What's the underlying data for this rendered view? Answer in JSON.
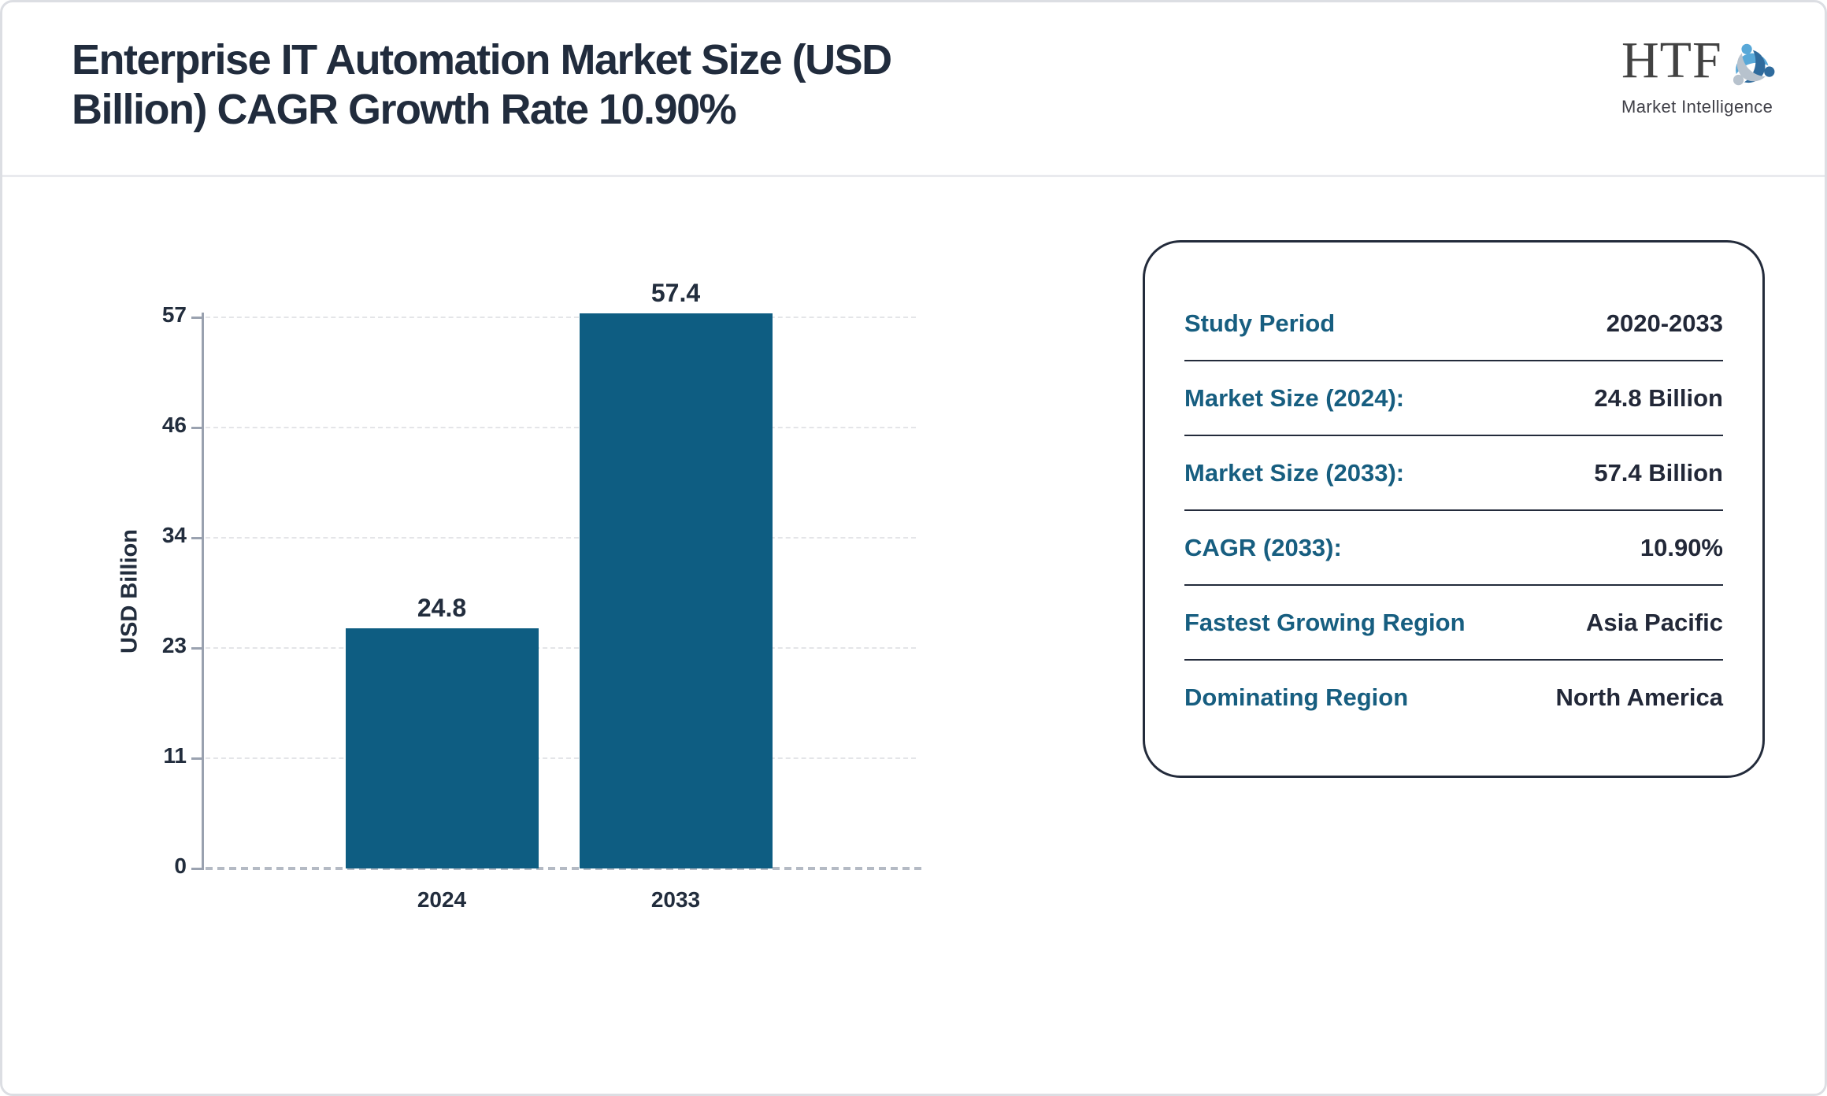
{
  "header": {
    "title": "Enterprise IT Automation Market Size (USD Billion) CAGR Growth Rate 10.90%",
    "title_lines": [
      "Enterprise IT Automation Market Size (USD",
      "Billion) CAGR Growth Rate 10.90%"
    ],
    "logo": {
      "text": "HTF",
      "subtext": "Market Intelligence"
    }
  },
  "chart_data": {
    "type": "bar",
    "title": "",
    "categories": [
      "2024",
      "2033"
    ],
    "values": [
      24.8,
      57.4
    ],
    "bar_value_labels": [
      "24.8",
      "57.4"
    ],
    "xlabel": "",
    "ylabel": "USD Billion",
    "ylim": [
      0,
      57
    ],
    "ytick_labels": [
      "0",
      "11",
      "23",
      "34",
      "46",
      "57"
    ],
    "axis_max": 57,
    "grid": "horizontal-dashed",
    "legend": "none",
    "bar_color": "#0e5d82"
  },
  "summary_panel": {
    "rows": [
      {
        "label": "Study Period",
        "value": "2020-2033"
      },
      {
        "label": "Market Size (2024):",
        "value": "24.8 Billion"
      },
      {
        "label": "Market Size (2033):",
        "value": "57.4 Billion"
      },
      {
        "label": "CAGR (2033):",
        "value": "10.90%"
      },
      {
        "label": "Fastest Growing Region",
        "value": "Asia Pacific"
      },
      {
        "label": "Dominating Region",
        "value": "North America"
      }
    ]
  },
  "colors": {
    "bar": "#0e5d82",
    "panel_label_teal": "#175e80",
    "text_navy": "#222d3d",
    "axis_gray": "#9aa2b0",
    "gridline": "#e4e5e8",
    "panel_border": "#232b3b",
    "card_border": "#dcdee3",
    "header_divider": "#e9eaee",
    "logo_light_blue": "#58a8d8",
    "logo_steel_blue": "#2f6b9d",
    "logo_gray": "#b7c2cd"
  }
}
